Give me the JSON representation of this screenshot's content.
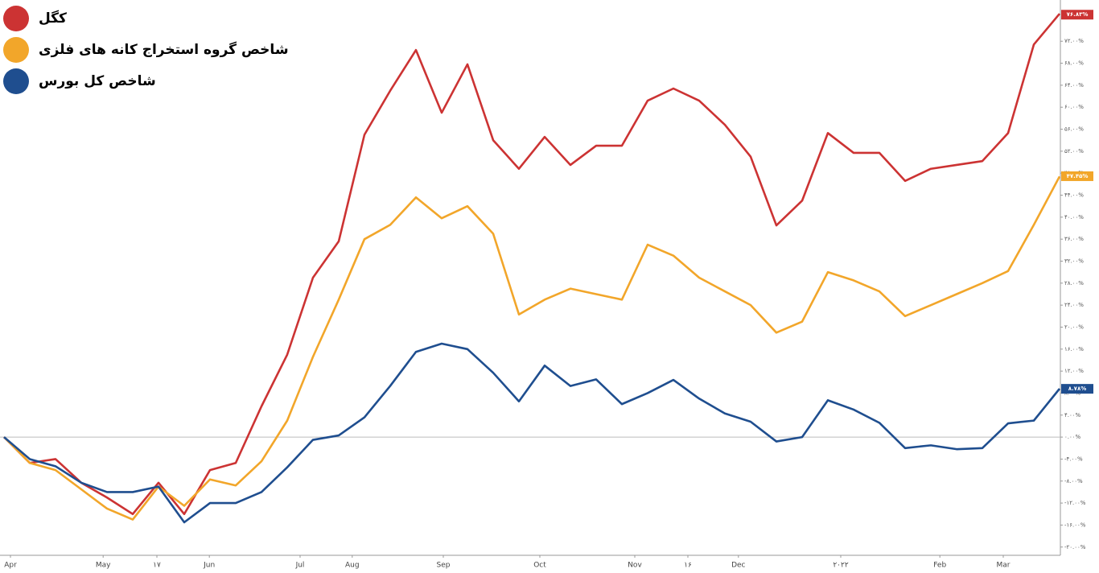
{
  "chart_data": {
    "type": "line",
    "legend": "top-left",
    "x": [
      0,
      4,
      8,
      12,
      16,
      20,
      24,
      28,
      32,
      36,
      40,
      44,
      48,
      52,
      56,
      60,
      64,
      68,
      72,
      76,
      80,
      84,
      88,
      92,
      96,
      100,
      104,
      108,
      112,
      116,
      120,
      124,
      128,
      132,
      136,
      140,
      144,
      148,
      152,
      156,
      160,
      164
    ],
    "xlim": [
      0,
      164
    ],
    "xticks": [
      {
        "value": 1,
        "label": "Apr"
      },
      {
        "value": 15.4,
        "label": "May"
      },
      {
        "value": 23.75,
        "label": "۱۷"
      },
      {
        "value": 31.9,
        "label": "Jun"
      },
      {
        "value": 46,
        "label": "Jul"
      },
      {
        "value": 54.1,
        "label": "Aug"
      },
      {
        "value": 68.25,
        "label": "Sep"
      },
      {
        "value": 83.25,
        "label": "Oct"
      },
      {
        "value": 98,
        "label": "Nov"
      },
      {
        "value": 106.25,
        "label": "۱۶"
      },
      {
        "value": 114.1,
        "label": "Dec"
      },
      {
        "value": 130,
        "label": "۲۰۲۲"
      },
      {
        "value": 145.4,
        "label": "Feb"
      },
      {
        "value": 155.25,
        "label": "Mar"
      }
    ],
    "ylim": [
      -21.5,
      79.5
    ],
    "yticks": [
      {
        "value": -20,
        "label": "-۲۰.۰۰%"
      },
      {
        "value": -16,
        "label": "-۱۶.۰۰%"
      },
      {
        "value": -12,
        "label": "-۱۲.۰۰%"
      },
      {
        "value": -8,
        "label": "-۸.۰۰%"
      },
      {
        "value": -4,
        "label": "-۴.۰۰%"
      },
      {
        "value": 0,
        "label": "۰.۰۰%"
      },
      {
        "value": 4,
        "label": "۴.۰۰%"
      },
      {
        "value": 8,
        "label": "۸.۰۰%"
      },
      {
        "value": 12,
        "label": "۱۲.۰۰%"
      },
      {
        "value": 16,
        "label": "۱۶.۰۰%"
      },
      {
        "value": 20,
        "label": "۲۰.۰۰%"
      },
      {
        "value": 24,
        "label": "۲۴.۰۰%"
      },
      {
        "value": 28,
        "label": "۲۸.۰۰%"
      },
      {
        "value": 32,
        "label": "۳۲.۰۰%"
      },
      {
        "value": 36,
        "label": "۳۶.۰۰%"
      },
      {
        "value": 40,
        "label": "۴۰.۰۰%"
      },
      {
        "value": 44,
        "label": "۴۴.۰۰%"
      },
      {
        "value": 48,
        "label": "۴۸.۰۰%"
      },
      {
        "value": 52,
        "label": "۵۲.۰۰%"
      },
      {
        "value": 56,
        "label": "۵۶.۰۰%"
      },
      {
        "value": 60,
        "label": "۶۰.۰۰%"
      },
      {
        "value": 64,
        "label": "۶۴.۰۰%"
      },
      {
        "value": 68,
        "label": "۶۸.۰۰%"
      },
      {
        "value": 72,
        "label": "۷۲.۰۰%"
      }
    ],
    "zero_line": 0,
    "series": [
      {
        "name": "کگل",
        "color": "#cc3333",
        "values": [
          0,
          -4.7,
          -4,
          -8.3,
          -11,
          -14,
          -8.3,
          -14,
          -6,
          -4.7,
          5.6,
          15,
          29,
          35.6,
          55,
          63,
          70.4,
          59,
          67.8,
          54,
          48.8,
          54.6,
          49.5,
          53,
          53,
          61.2,
          63.4,
          61.2,
          56.8,
          51,
          38.5,
          43,
          55.3,
          51.7,
          51.7,
          46.6,
          48.8,
          49.5,
          50.2,
          55.3,
          71.4,
          77
        ],
        "end_label": {
          "value": 76.83,
          "label": "۷۶.۸۳%"
        }
      },
      {
        "name": "شاخص گروه استخراج کانه های فلزی",
        "color": "#f2a62a",
        "values": [
          0,
          -4.7,
          -6,
          -9.5,
          -13,
          -15,
          -9,
          -12.5,
          -7.7,
          -8.8,
          -4.4,
          3,
          14.6,
          25,
          36,
          38.6,
          43.6,
          39.8,
          42,
          37,
          22.3,
          25,
          27,
          26,
          25,
          35,
          33,
          29,
          26.5,
          24,
          19,
          21,
          30,
          28.5,
          26.5,
          22,
          24,
          26,
          28,
          30.2,
          38.6,
          47.4
        ],
        "end_label": {
          "value": 47.45,
          "label": "۴۷.۴۵%"
        }
      },
      {
        "name": "شاخص کل بورس",
        "color": "#1f4e8f",
        "values": [
          0,
          -4,
          -5.3,
          -8.3,
          -10,
          -10,
          -9,
          -15.5,
          -12,
          -12,
          -10,
          -5.5,
          -0.5,
          0.3,
          3.6,
          9.3,
          15.5,
          17,
          16,
          11.7,
          6.5,
          13,
          9.3,
          10.5,
          6,
          8,
          10.4,
          7,
          4.3,
          2.8,
          -0.8,
          0,
          6.7,
          5,
          2.6,
          -2,
          -1.5,
          -2.2,
          -2,
          2.5,
          3,
          8.8
        ],
        "end_label": {
          "value": 8.78,
          "label": "۸.۷۸%"
        }
      }
    ]
  }
}
